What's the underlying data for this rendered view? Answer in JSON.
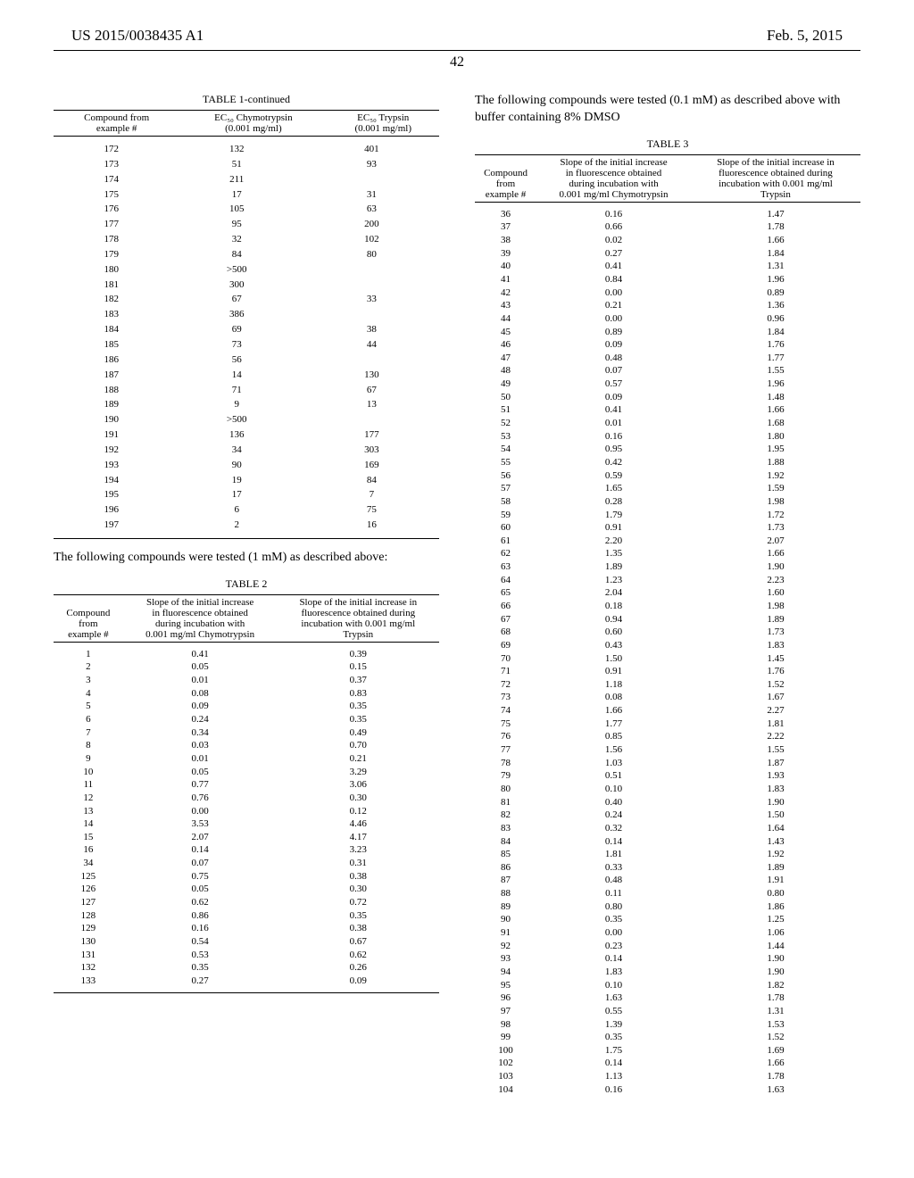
{
  "header": {
    "doc_number": "US 2015/0038435 A1",
    "date": "Feb. 5, 2015",
    "page_number": "42"
  },
  "tables": {
    "t1": {
      "caption": "TABLE 1-continued",
      "head_col1_l1": "Compound from",
      "head_col1_l2": "example #",
      "head_col2_l1": "EC₅₀ Chymotrypsin",
      "head_col2_l2": "(0.001 mg/ml)",
      "head_col3_l1": "EC₅₀ Trypsin",
      "head_col3_l2": "(0.001 mg/ml)",
      "rows": [
        [
          "172",
          "132",
          "401"
        ],
        [
          "173",
          "51",
          "93"
        ],
        [
          "174",
          "211",
          ""
        ],
        [
          "175",
          "17",
          "31"
        ],
        [
          "176",
          "105",
          "63"
        ],
        [
          "177",
          "95",
          "200"
        ],
        [
          "178",
          "32",
          "102"
        ],
        [
          "179",
          "84",
          "80"
        ],
        [
          "180",
          ">500",
          ""
        ],
        [
          "181",
          "300",
          ""
        ],
        [
          "182",
          "67",
          "33"
        ],
        [
          "183",
          "386",
          ""
        ],
        [
          "184",
          "69",
          "38"
        ],
        [
          "185",
          "73",
          "44"
        ],
        [
          "186",
          "56",
          ""
        ],
        [
          "187",
          "14",
          "130"
        ],
        [
          "188",
          "71",
          "67"
        ],
        [
          "189",
          "9",
          "13"
        ],
        [
          "190",
          ">500",
          ""
        ],
        [
          "191",
          "136",
          "177"
        ],
        [
          "192",
          "34",
          "303"
        ],
        [
          "193",
          "90",
          "169"
        ],
        [
          "194",
          "19",
          "84"
        ],
        [
          "195",
          "17",
          "7"
        ],
        [
          "196",
          "6",
          "75"
        ],
        [
          "197",
          "2",
          "16"
        ]
      ]
    },
    "t2": {
      "caption": "TABLE 2",
      "intro": "The following compounds were tested (1 mM) as described above:",
      "head_col1_l1": "Compound",
      "head_col1_l2": "from",
      "head_col1_l3": "example #",
      "head_col2_l1": "Slope of the initial increase",
      "head_col2_l2": "in fluorescence obtained",
      "head_col2_l3": "during incubation with",
      "head_col2_l4": "0.001 mg/ml Chymotrypsin",
      "head_col3_l1": "Slope of the initial increase in",
      "head_col3_l2": "fluorescence obtained during",
      "head_col3_l3": "incubation with 0.001 mg/ml",
      "head_col3_l4": "Trypsin",
      "rows": [
        [
          "1",
          "0.41",
          "0.39"
        ],
        [
          "2",
          "0.05",
          "0.15"
        ],
        [
          "3",
          "0.01",
          "0.37"
        ],
        [
          "4",
          "0.08",
          "0.83"
        ],
        [
          "5",
          "0.09",
          "0.35"
        ],
        [
          "6",
          "0.24",
          "0.35"
        ],
        [
          "7",
          "0.34",
          "0.49"
        ],
        [
          "8",
          "0.03",
          "0.70"
        ],
        [
          "9",
          "0.01",
          "0.21"
        ],
        [
          "10",
          "0.05",
          "3.29"
        ],
        [
          "11",
          "0.77",
          "3.06"
        ],
        [
          "12",
          "0.76",
          "0.30"
        ],
        [
          "13",
          "0.00",
          "0.12"
        ],
        [
          "14",
          "3.53",
          "4.46"
        ],
        [
          "15",
          "2.07",
          "4.17"
        ],
        [
          "16",
          "0.14",
          "3.23"
        ],
        [
          "34",
          "0.07",
          "0.31"
        ],
        [
          "125",
          "0.75",
          "0.38"
        ],
        [
          "126",
          "0.05",
          "0.30"
        ],
        [
          "127",
          "0.62",
          "0.72"
        ],
        [
          "128",
          "0.86",
          "0.35"
        ],
        [
          "129",
          "0.16",
          "0.38"
        ],
        [
          "130",
          "0.54",
          "0.67"
        ],
        [
          "131",
          "0.53",
          "0.62"
        ],
        [
          "132",
          "0.35",
          "0.26"
        ],
        [
          "133",
          "0.27",
          "0.09"
        ]
      ]
    },
    "t3": {
      "caption": "TABLE 3",
      "intro": "The following compounds were tested (0.1 mM) as described above with buffer containing 8% DMSO",
      "head_col1_l1": "Compound",
      "head_col1_l2": "from",
      "head_col1_l3": "example #",
      "head_col2_l1": "Slope of the initial increase",
      "head_col2_l2": "in fluorescence obtained",
      "head_col2_l3": "during incubation with",
      "head_col2_l4": "0.001 mg/ml Chymotrypsin",
      "head_col3_l1": "Slope of the initial increase in",
      "head_col3_l2": "fluorescence obtained during",
      "head_col3_l3": "incubation with 0.001 mg/ml",
      "head_col3_l4": "Trypsin",
      "rows": [
        [
          "36",
          "0.16",
          "1.47"
        ],
        [
          "37",
          "0.66",
          "1.78"
        ],
        [
          "38",
          "0.02",
          "1.66"
        ],
        [
          "39",
          "0.27",
          "1.84"
        ],
        [
          "40",
          "0.41",
          "1.31"
        ],
        [
          "41",
          "0.84",
          "1.96"
        ],
        [
          "42",
          "0.00",
          "0.89"
        ],
        [
          "43",
          "0.21",
          "1.36"
        ],
        [
          "44",
          "0.00",
          "0.96"
        ],
        [
          "45",
          "0.89",
          "1.84"
        ],
        [
          "46",
          "0.09",
          "1.76"
        ],
        [
          "47",
          "0.48",
          "1.77"
        ],
        [
          "48",
          "0.07",
          "1.55"
        ],
        [
          "49",
          "0.57",
          "1.96"
        ],
        [
          "50",
          "0.09",
          "1.48"
        ],
        [
          "51",
          "0.41",
          "1.66"
        ],
        [
          "52",
          "0.01",
          "1.68"
        ],
        [
          "53",
          "0.16",
          "1.80"
        ],
        [
          "54",
          "0.95",
          "1.95"
        ],
        [
          "55",
          "0.42",
          "1.88"
        ],
        [
          "56",
          "0.59",
          "1.92"
        ],
        [
          "57",
          "1.65",
          "1.59"
        ],
        [
          "58",
          "0.28",
          "1.98"
        ],
        [
          "59",
          "1.79",
          "1.72"
        ],
        [
          "60",
          "0.91",
          "1.73"
        ],
        [
          "61",
          "2.20",
          "2.07"
        ],
        [
          "62",
          "1.35",
          "1.66"
        ],
        [
          "63",
          "1.89",
          "1.90"
        ],
        [
          "64",
          "1.23",
          "2.23"
        ],
        [
          "65",
          "2.04",
          "1.60"
        ],
        [
          "66",
          "0.18",
          "1.98"
        ],
        [
          "67",
          "0.94",
          "1.89"
        ],
        [
          "68",
          "0.60",
          "1.73"
        ],
        [
          "69",
          "0.43",
          "1.83"
        ],
        [
          "70",
          "1.50",
          "1.45"
        ],
        [
          "71",
          "0.91",
          "1.76"
        ],
        [
          "72",
          "1.18",
          "1.52"
        ],
        [
          "73",
          "0.08",
          "1.67"
        ],
        [
          "74",
          "1.66",
          "2.27"
        ],
        [
          "75",
          "1.77",
          "1.81"
        ],
        [
          "76",
          "0.85",
          "2.22"
        ],
        [
          "77",
          "1.56",
          "1.55"
        ],
        [
          "78",
          "1.03",
          "1.87"
        ],
        [
          "79",
          "0.51",
          "1.93"
        ],
        [
          "80",
          "0.10",
          "1.83"
        ],
        [
          "81",
          "0.40",
          "1.90"
        ],
        [
          "82",
          "0.24",
          "1.50"
        ],
        [
          "83",
          "0.32",
          "1.64"
        ],
        [
          "84",
          "0.14",
          "1.43"
        ],
        [
          "85",
          "1.81",
          "1.92"
        ],
        [
          "86",
          "0.33",
          "1.89"
        ],
        [
          "87",
          "0.48",
          "1.91"
        ],
        [
          "88",
          "0.11",
          "0.80"
        ],
        [
          "89",
          "0.80",
          "1.86"
        ],
        [
          "90",
          "0.35",
          "1.25"
        ],
        [
          "91",
          "0.00",
          "1.06"
        ],
        [
          "92",
          "0.23",
          "1.44"
        ],
        [
          "93",
          "0.14",
          "1.90"
        ],
        [
          "94",
          "1.83",
          "1.90"
        ],
        [
          "95",
          "0.10",
          "1.82"
        ],
        [
          "96",
          "1.63",
          "1.78"
        ],
        [
          "97",
          "0.55",
          "1.31"
        ],
        [
          "98",
          "1.39",
          "1.53"
        ],
        [
          "99",
          "0.35",
          "1.52"
        ],
        [
          "100",
          "1.75",
          "1.69"
        ],
        [
          "102",
          "0.14",
          "1.66"
        ],
        [
          "103",
          "1.13",
          "1.78"
        ],
        [
          "104",
          "0.16",
          "1.63"
        ]
      ]
    }
  }
}
